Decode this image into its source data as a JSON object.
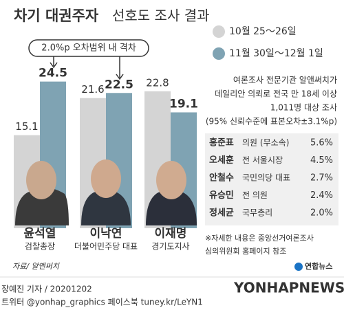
{
  "chart_data": {
    "type": "bar",
    "title": "차기 대권주자",
    "subtitle": "선호도 조사 결과",
    "annotation": "2.0%p 오차범위 내 격차",
    "categories": [
      "윤석열",
      "이낙연",
      "이재명"
    ],
    "category_subtitles": [
      "검찰총장",
      "더불어민주당 대표",
      "경기도지사"
    ],
    "series": [
      {
        "name": "10월 25～26일",
        "color": "#d4d4d4",
        "values": [
          15.1,
          21.6,
          22.8
        ]
      },
      {
        "name": "11월 30일～12월 1일",
        "color": "#7fa3b3",
        "values": [
          24.5,
          22.5,
          19.1
        ]
      }
    ],
    "survey_note": [
      "여론조사 전문기관 알앤써치가",
      "데일리안 의뢰로 전국 만 18세 이상",
      "1,011명 대상 조사",
      "(95% 신뢰수준에 표본오차±3.1%p)"
    ],
    "others": [
      {
        "name": "홍준표",
        "role": "의원 (무소속)",
        "value": "5.6%"
      },
      {
        "name": "오세훈",
        "role": "전 서울시장",
        "value": "4.5%"
      },
      {
        "name": "안철수",
        "role": "국민의당 대표",
        "value": "2.7%"
      },
      {
        "name": "유승민",
        "role": "전 의원",
        "value": "2.4%"
      },
      {
        "name": "정세균",
        "role": "국무총리",
        "value": "2.0%"
      }
    ],
    "footnote": [
      "※자세한 내용은 중앙선거여론조사",
      "심의위원회 홈페이지 참조"
    ],
    "source": "자료/ 알앤써치",
    "logo": "연합뉴스",
    "watermark": "YONHAPNEWS",
    "byline": "장예진 기자 / 20201202",
    "social": "트위터 @yonhap_graphics  페이스북 tuney.kr/LeYN1"
  }
}
